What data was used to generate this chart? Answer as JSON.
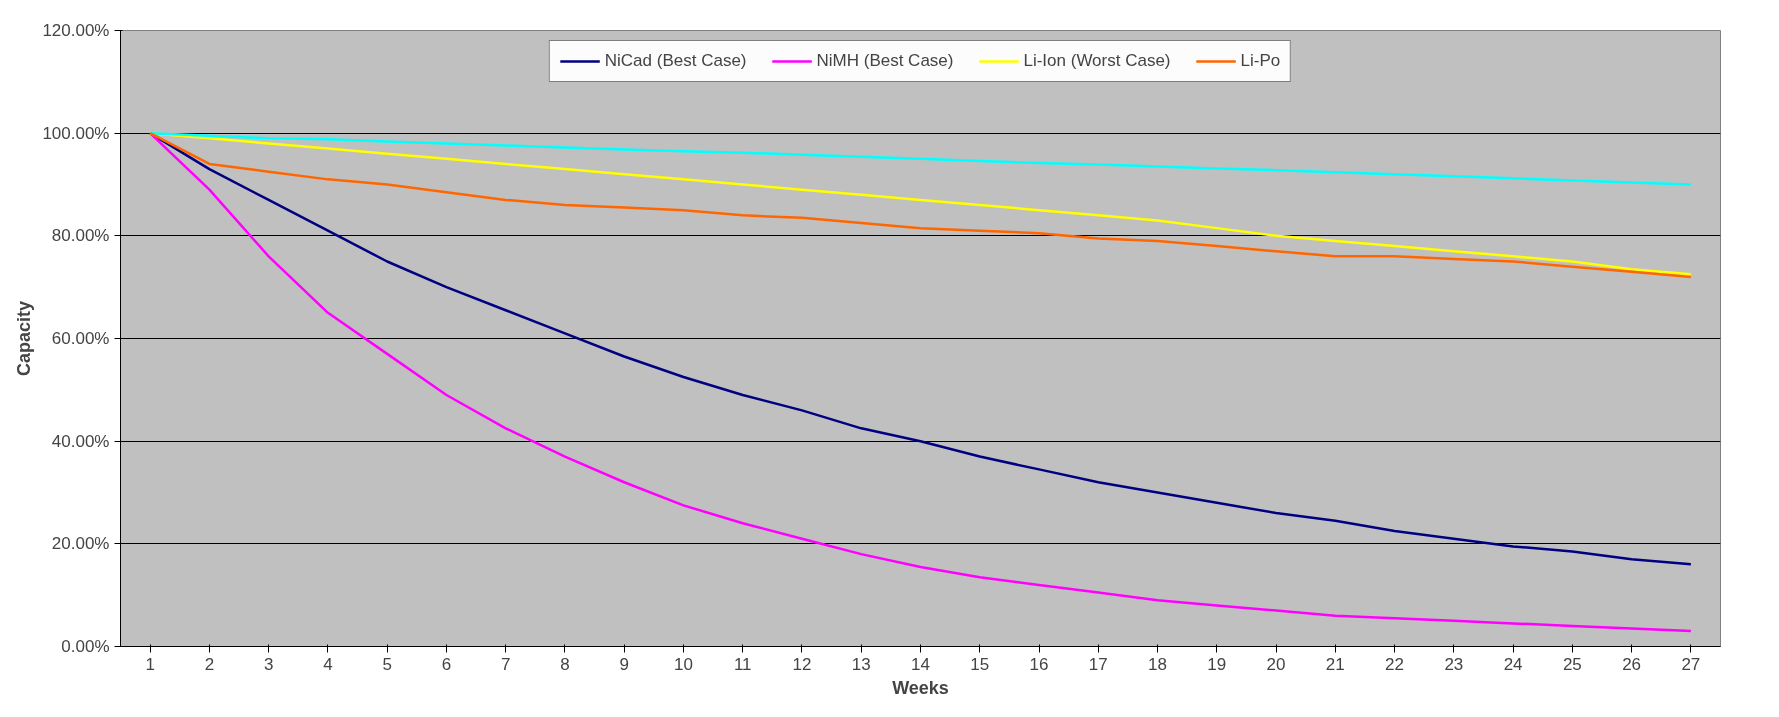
{
  "chart_data": {
    "type": "line",
    "xlabel": "Weeks",
    "ylabel": "Capacity",
    "x": [
      1,
      2,
      3,
      4,
      5,
      6,
      7,
      8,
      9,
      10,
      11,
      12,
      13,
      14,
      15,
      16,
      17,
      18,
      19,
      20,
      21,
      22,
      23,
      24,
      25,
      26,
      27
    ],
    "xlim": [
      0.5,
      27.5
    ],
    "xticks": [
      1,
      2,
      3,
      4,
      5,
      6,
      7,
      8,
      9,
      10,
      11,
      12,
      13,
      14,
      15,
      16,
      17,
      18,
      19,
      20,
      21,
      22,
      23,
      24,
      25,
      26,
      27
    ],
    "ylim": [
      0,
      120
    ],
    "yticks": [
      {
        "value": 0,
        "label": "0.00%"
      },
      {
        "value": 20,
        "label": "20.00%"
      },
      {
        "value": 40,
        "label": "40.00%"
      },
      {
        "value": 60,
        "label": "60.00%"
      },
      {
        "value": 80,
        "label": "80.00%"
      },
      {
        "value": 100,
        "label": "100.00%"
      },
      {
        "value": 120,
        "label": "120.00%"
      }
    ],
    "grid": "y",
    "legend": "top",
    "marker": "none",
    "line_style": "solid",
    "series": [
      {
        "name": "NiCad (Best Case)",
        "color": "#000080",
        "values": [
          100,
          93,
          87,
          81,
          75,
          70,
          65.5,
          61,
          56.5,
          52.5,
          49,
          46,
          42.5,
          40,
          37,
          34.5,
          32,
          30,
          28,
          26,
          24.5,
          22.5,
          21,
          19.5,
          18.5,
          17,
          16
        ]
      },
      {
        "name": "NiMH (Best Case)",
        "color": "#ff00ff",
        "values": [
          100,
          89,
          76,
          65,
          57,
          49,
          42.5,
          37,
          32,
          27.5,
          24,
          21,
          18,
          15.5,
          13.5,
          12,
          10.5,
          9,
          8,
          7,
          6,
          5.5,
          5,
          4.5,
          4,
          3.5,
          3
        ]
      },
      {
        "name": "Li-Ion (Worst Case)",
        "color": "#ffff00",
        "values": [
          100,
          99,
          98,
          97,
          96,
          95,
          94,
          93,
          92,
          91,
          90,
          89,
          88,
          87,
          86,
          85,
          84,
          83,
          81.5,
          80,
          79,
          78,
          77,
          76,
          75,
          73.5,
          72.5
        ]
      },
      {
        "color": "#00ffff",
        "values": [
          100,
          99.5,
          99,
          98.8,
          98.4,
          98,
          97.6,
          97.2,
          96.8,
          96.5,
          96.2,
          95.8,
          95.4,
          95,
          94.6,
          94.2,
          93.9,
          93.5,
          93.1,
          92.8,
          92.4,
          92,
          91.6,
          91.2,
          90.8,
          90.4,
          90
        ]
      },
      {
        "name": "Li-Po",
        "color": "#ff6600",
        "values": [
          100,
          94,
          92.5,
          91,
          90,
          88.5,
          87,
          86,
          85.5,
          85,
          84,
          83.5,
          82.5,
          81.5,
          81,
          80.5,
          79.5,
          79,
          78,
          77,
          76,
          76,
          75.5,
          75,
          74,
          73,
          72
        ]
      }
    ]
  }
}
